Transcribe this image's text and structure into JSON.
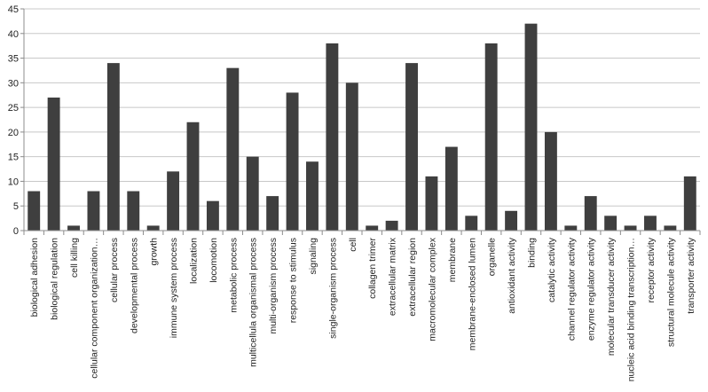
{
  "chart_data": {
    "type": "bar",
    "categories": [
      "biological adhesion",
      "biological regulation",
      "cell killing",
      "cellular component organization…",
      "cellular process",
      "developmental process",
      "growth",
      "immune system process",
      "localization",
      "locomotion",
      "metabolic process",
      "multicellula organismal process",
      "multi-organism process",
      "response to stimulus",
      "signaling",
      "single-organism process",
      "cell",
      "collagen trimer",
      "extracellular matrix",
      "extracellular region",
      "macromolecular complex",
      "membrane",
      "membrane-enclosed lumen",
      "organelle",
      "antioxidant activity",
      "binding",
      "catalytic activity",
      "channel regulator activity",
      "enzyme regulator activity",
      "molecular transducer activity",
      "nucleic acid binding transcription…",
      "receptor activity",
      "structural molecule activity",
      "transporter activity"
    ],
    "values": [
      8,
      27,
      1,
      8,
      34,
      8,
      1,
      12,
      22,
      6,
      33,
      15,
      7,
      28,
      14,
      38,
      30,
      1,
      2,
      34,
      11,
      17,
      3,
      38,
      4,
      42,
      20,
      1,
      7,
      3,
      1,
      3,
      1,
      11
    ],
    "title": "",
    "xlabel": "",
    "ylabel": "",
    "ylim": [
      0,
      45
    ],
    "yticks": [
      0,
      5,
      10,
      15,
      20,
      25,
      30,
      35,
      40,
      45
    ],
    "grid": true,
    "legend": "none",
    "colors": {
      "bar": "#3f3f3f",
      "grid": "#c8c8c8",
      "axis": "#8c8c8c"
    }
  }
}
